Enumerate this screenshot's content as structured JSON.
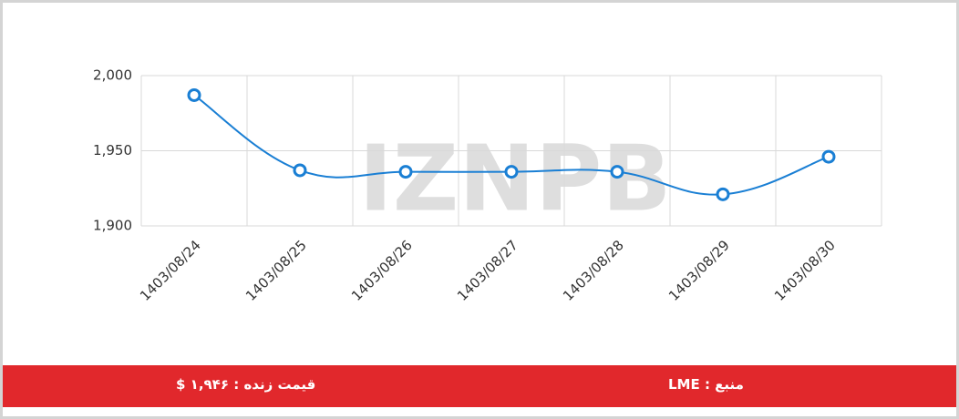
{
  "chart_data": {
    "type": "line",
    "watermark": "IZNPB",
    "categories": [
      "1403/08/24",
      "1403/08/25",
      "1403/08/26",
      "1403/08/27",
      "1403/08/28",
      "1403/08/29",
      "1403/08/30"
    ],
    "series": [
      {
        "color": "#1a7fd4",
        "values": [
          1987,
          1937,
          1936,
          1936,
          1936,
          1921,
          1946
        ]
      }
    ],
    "ylim": [
      1900,
      2000
    ],
    "yticks": [
      {
        "value": 1900,
        "label": "1,900"
      },
      {
        "value": 1950,
        "label": "1,950"
      },
      {
        "value": 2000,
        "label": "2,000"
      }
    ],
    "grid": true
  },
  "footer": {
    "live_price": "قیمت زنده : ۱,۹۴۶ $",
    "source": "منبع : LME"
  }
}
